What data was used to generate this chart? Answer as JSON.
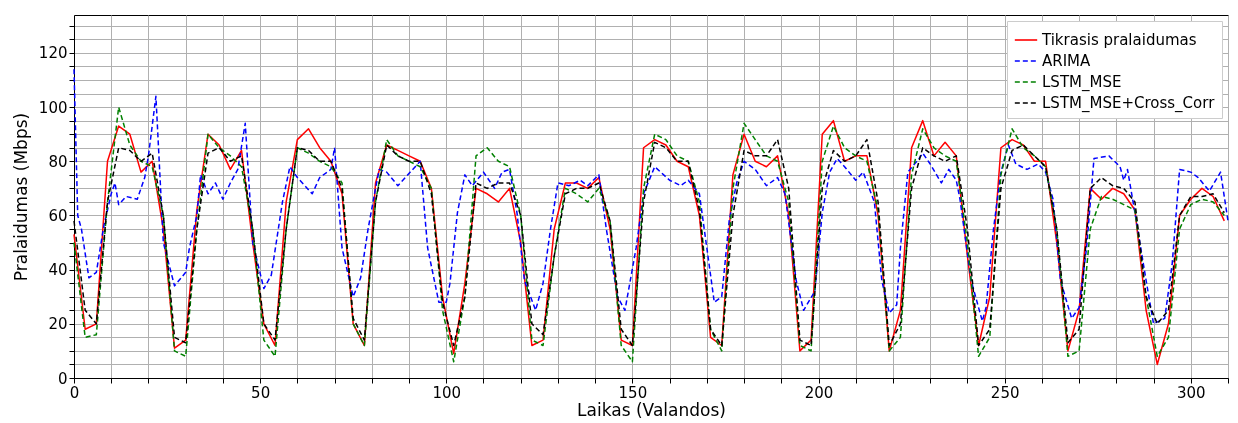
{
  "chart_data": {
    "type": "line",
    "xlabel": "Laikas (Valandos)",
    "ylabel": "Pralaidumas (Mbps)",
    "xlim": [
      0,
      310
    ],
    "ylim": [
      0,
      134
    ],
    "xticks": [
      0,
      {
        "value": 10,
        "label": null
      },
      {
        "value": 20,
        "label": null
      },
      {
        "value": 30,
        "label": null
      },
      {
        "value": 40,
        "label": null
      },
      50,
      {
        "value": 60,
        "label": null
      },
      {
        "value": 70,
        "label": null
      },
      {
        "value": 80,
        "label": null
      },
      {
        "value": 90,
        "label": null
      },
      100,
      {
        "value": 110,
        "label": null
      },
      {
        "value": 120,
        "label": null
      },
      {
        "value": 130,
        "label": null
      },
      {
        "value": 140,
        "label": null
      },
      150,
      {
        "value": 160,
        "label": null
      },
      {
        "value": 170,
        "label": null
      },
      {
        "value": 180,
        "label": null
      },
      {
        "value": 190,
        "label": null
      },
      200,
      {
        "value": 210,
        "label": null
      },
      {
        "value": 220,
        "label": null
      },
      {
        "value": 230,
        "label": null
      },
      {
        "value": 240,
        "label": null
      },
      250,
      {
        "value": 260,
        "label": null
      },
      {
        "value": 270,
        "label": null
      },
      {
        "value": 280,
        "label": null
      },
      {
        "value": 290,
        "label": null
      },
      300,
      {
        "value": 310,
        "label": null
      }
    ],
    "yticks": [
      0,
      {
        "value": 5,
        "label": null
      },
      {
        "value": 10,
        "label": null
      },
      {
        "value": 15,
        "label": null
      },
      20,
      {
        "value": 25,
        "label": null
      },
      {
        "value": 30,
        "label": null
      },
      {
        "value": 35,
        "label": null
      },
      40,
      {
        "value": 45,
        "label": null
      },
      {
        "value": 50,
        "label": null
      },
      {
        "value": 55,
        "label": null
      },
      60,
      {
        "value": 65,
        "label": null
      },
      {
        "value": 70,
        "label": null
      },
      {
        "value": 75,
        "label": null
      },
      80,
      {
        "value": 85,
        "label": null
      },
      {
        "value": 90,
        "label": null
      },
      {
        "value": 95,
        "label": null
      },
      100,
      {
        "value": 105,
        "label": null
      },
      {
        "value": 110,
        "label": null
      },
      {
        "value": 115,
        "label": null
      },
      120,
      {
        "value": 125,
        "label": null
      },
      {
        "value": 130,
        "label": null
      }
    ],
    "grid": true,
    "legend": "top right",
    "x": [
      0,
      3,
      6,
      9,
      12,
      15,
      18,
      21,
      24,
      27,
      30,
      33,
      36,
      39,
      42,
      45,
      48,
      51,
      54,
      57,
      60,
      63,
      66,
      69,
      72,
      75,
      78,
      81,
      84,
      87,
      90,
      93,
      96,
      99,
      102,
      105,
      108,
      111,
      114,
      117,
      120,
      123,
      126,
      129,
      132,
      135,
      138,
      141,
      144,
      147,
      150,
      153,
      156,
      159,
      162,
      165,
      168,
      171,
      174,
      177,
      180,
      183,
      186,
      189,
      192,
      195,
      198,
      201,
      204,
      207,
      210,
      213,
      216,
      219,
      222,
      225,
      228,
      231,
      234,
      237,
      240,
      243,
      246,
      249,
      252,
      255,
      258,
      261,
      264,
      267,
      270,
      273,
      276,
      279,
      282,
      285,
      288,
      291,
      294,
      297,
      300,
      303,
      306,
      309
    ],
    "series": [
      {
        "name": "Tikrasis pralaidumas",
        "color": "#ff0000",
        "line_style": "solid",
        "values": [
          53,
          18,
          20,
          80,
          93,
          90,
          76,
          80,
          55,
          11,
          14,
          62,
          90,
          86,
          77,
          84,
          50,
          20,
          12,
          65,
          88,
          92,
          85,
          80,
          68,
          20,
          12,
          72,
          86,
          84,
          82,
          80,
          70,
          30,
          9,
          35,
          70,
          68,
          65,
          70,
          50,
          12,
          14,
          55,
          72,
          72,
          70,
          74,
          55,
          14,
          12,
          85,
          88,
          86,
          80,
          78,
          60,
          15,
          12,
          75,
          90,
          80,
          78,
          82,
          60,
          10,
          14,
          90,
          95,
          80,
          82,
          82,
          60,
          10,
          25,
          85,
          95,
          82,
          87,
          82,
          45,
          12,
          30,
          85,
          88,
          86,
          80,
          80,
          50,
          10,
          25,
          70,
          66,
          70,
          68,
          62,
          25,
          5,
          20,
          60,
          66,
          70,
          67,
          58
        ]
      },
      {
        "name": "ARIMA",
        "color": "#0000ff",
        "line_style": "dashed",
        "x": [
          0,
          1,
          2,
          4,
          6,
          8,
          10,
          11,
          12,
          14,
          17,
          19,
          20,
          22,
          24,
          27,
          30,
          31,
          33,
          34,
          36,
          38,
          40,
          42,
          44,
          46,
          48,
          51,
          53,
          56,
          58,
          60,
          64,
          66,
          69,
          70,
          72,
          75,
          77,
          79,
          81,
          82,
          84,
          87,
          89,
          93,
          95,
          98,
          100,
          101,
          103,
          105,
          107,
          110,
          113,
          115,
          117,
          119,
          121,
          124,
          126,
          128,
          130,
          133,
          136,
          138,
          141,
          143,
          146,
          148,
          151,
          153,
          156,
          160,
          163,
          165,
          168,
          170,
          172,
          174,
          176,
          178,
          180,
          183,
          186,
          189,
          191,
          194,
          196,
          199,
          201,
          203,
          205,
          207,
          210,
          212,
          215,
          217,
          219,
          221,
          222,
          224,
          227,
          228,
          230,
          233,
          235,
          237,
          238,
          241,
          244,
          245,
          247,
          249,
          251,
          253,
          256,
          259,
          261,
          263,
          265,
          268,
          270,
          272,
          274,
          278,
          281,
          282,
          283,
          285,
          288,
          290,
          293,
          295,
          297,
          300,
          302,
          305,
          308,
          310
        ],
        "values": [
          114,
          60,
          55,
          37,
          39,
          56,
          68,
          72,
          64,
          67,
          66,
          74,
          82,
          104,
          50,
          34,
          39,
          48,
          60,
          75,
          68,
          72,
          66,
          72,
          77,
          94,
          50,
          33,
          38,
          65,
          78,
          74,
          68,
          74,
          77,
          85,
          48,
          30,
          37,
          55,
          70,
          77,
          76,
          71,
          74,
          80,
          48,
          28,
          28,
          35,
          61,
          75,
          71,
          76,
          70,
          76,
          77,
          61,
          36,
          25,
          35,
          55,
          72,
          71,
          73,
          71,
          75,
          55,
          30,
          25,
          48,
          68,
          78,
          73,
          71,
          73,
          68,
          48,
          28,
          30,
          58,
          72,
          80,
          77,
          71,
          74,
          68,
          36,
          25,
          32,
          61,
          76,
          81,
          78,
          73,
          76,
          65,
          36,
          24,
          27,
          48,
          76,
          81,
          83,
          79,
          72,
          77,
          73,
          66,
          36,
          21,
          26,
          55,
          76,
          86,
          79,
          77,
          79,
          76,
          66,
          36,
          22,
          26,
          48,
          81,
          82,
          78,
          73,
          77,
          61,
          36,
          20,
          22,
          42,
          77,
          76,
          74,
          69,
          76,
          58
        ]
      },
      {
        "name": "LSTM_MSE",
        "color": "#008000",
        "line_style": "dashed",
        "values": [
          50,
          15,
          16,
          65,
          100,
          86,
          80,
          78,
          60,
          10,
          8,
          55,
          90,
          85,
          82,
          78,
          55,
          14,
          8,
          55,
          85,
          83,
          80,
          78,
          72,
          20,
          12,
          65,
          88,
          82,
          80,
          78,
          70,
          25,
          6,
          30,
          82,
          85,
          80,
          78,
          60,
          14,
          12,
          45,
          70,
          68,
          65,
          70,
          58,
          12,
          6,
          70,
          90,
          88,
          82,
          80,
          65,
          18,
          10,
          70,
          94,
          88,
          82,
          80,
          65,
          12,
          10,
          80,
          93,
          85,
          82,
          80,
          62,
          10,
          15,
          75,
          92,
          85,
          82,
          80,
          50,
          8,
          15,
          75,
          92,
          85,
          82,
          78,
          55,
          8,
          10,
          55,
          67,
          66,
          64,
          62,
          30,
          8,
          15,
          55,
          64,
          66,
          65,
          60
        ]
      },
      {
        "name": "LSTM_MSE+Cross_Corr",
        "color": "#000000",
        "line_style": "dashed",
        "values": [
          58,
          25,
          20,
          65,
          85,
          84,
          80,
          83,
          60,
          15,
          13,
          55,
          83,
          85,
          80,
          82,
          55,
          20,
          14,
          55,
          85,
          84,
          80,
          80,
          70,
          22,
          14,
          65,
          86,
          82,
          80,
          80,
          68,
          28,
          12,
          30,
          72,
          70,
          72,
          72,
          60,
          20,
          16,
          45,
          68,
          70,
          70,
          72,
          58,
          18,
          12,
          65,
          87,
          85,
          80,
          80,
          62,
          18,
          12,
          60,
          84,
          82,
          82,
          88,
          70,
          14,
          12,
          70,
          84,
          80,
          82,
          88,
          65,
          12,
          20,
          70,
          85,
          82,
          80,
          82,
          55,
          12,
          18,
          70,
          84,
          86,
          82,
          78,
          55,
          13,
          18,
          70,
          74,
          71,
          70,
          65,
          30,
          20,
          25,
          60,
          67,
          67,
          68,
          61
        ]
      }
    ]
  }
}
